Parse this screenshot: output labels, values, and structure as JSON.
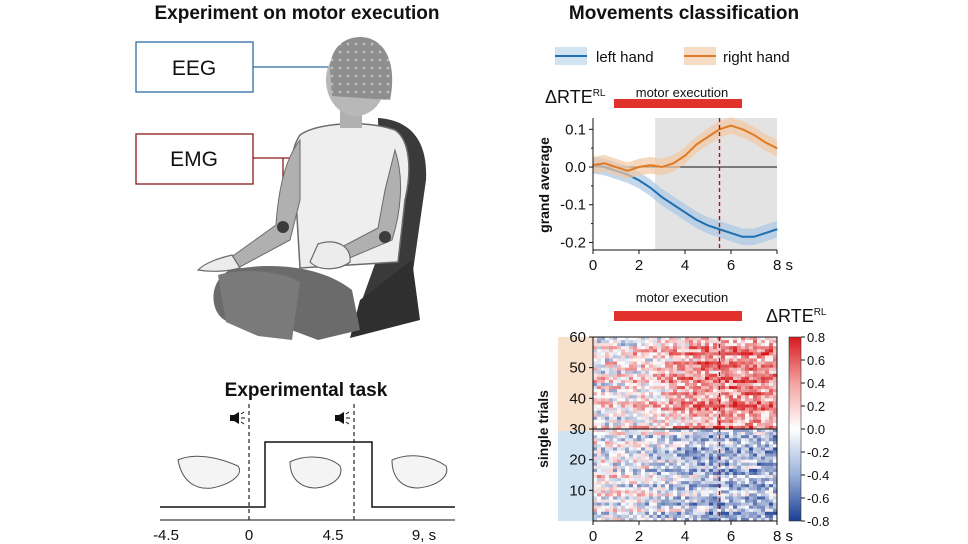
{
  "left": {
    "title": "Experiment on motor execution",
    "eeg_label": "EEG",
    "emg_label": "EMG",
    "task_title": "Experimental task",
    "task_ticks": [
      "-4.5",
      "0",
      "4.5",
      "9, s"
    ],
    "colors": {
      "eeg": "#2e6da4",
      "emg": "#8b1a1a"
    }
  },
  "right": {
    "title": "Movements classification",
    "legend": [
      {
        "label": "left hand",
        "color": "#1f6fb0"
      },
      {
        "label": "right hand",
        "color": "#e07b24"
      }
    ],
    "motor_execution_label": "motor execution",
    "metric_base": "ΔRTE",
    "metric_sup": "RL",
    "top_ylabel": "grand average",
    "bottom_ylabel": "single trials",
    "bar_color": "#e1312a"
  },
  "chart_data": [
    {
      "type": "line",
      "x": [
        0,
        0.5,
        1,
        1.5,
        2,
        2.5,
        3,
        3.5,
        4,
        4.5,
        5,
        5.5,
        6,
        6.5,
        7,
        7.5,
        8
      ],
      "series": [
        {
          "name": "left hand",
          "values": [
            0.005,
            0.0,
            -0.01,
            -0.02,
            -0.035,
            -0.055,
            -0.08,
            -0.1,
            -0.12,
            -0.14,
            -0.155,
            -0.165,
            -0.175,
            -0.185,
            -0.185,
            -0.175,
            -0.165
          ]
        },
        {
          "name": "right hand",
          "values": [
            0.005,
            0.01,
            0.0,
            -0.01,
            0.0,
            0.005,
            0.0,
            0.01,
            0.03,
            0.06,
            0.08,
            0.1,
            0.11,
            0.1,
            0.085,
            0.065,
            0.05
          ]
        }
      ],
      "xticks": [
        "0",
        "2",
        "4",
        "6",
        "8 s"
      ],
      "yticks": [
        "0.1",
        "0.0",
        "-0.1",
        "-0.2"
      ],
      "xlim": [
        0,
        8
      ],
      "ylim": [
        -0.22,
        0.13
      ],
      "shaded_window": [
        2.7,
        8
      ],
      "vline_x": 5.5,
      "motor_execution": [
        1,
        6.5
      ]
    },
    {
      "type": "heatmap",
      "xlim": [
        0,
        8
      ],
      "ylim": [
        0,
        60
      ],
      "xticks": [
        "0",
        "2",
        "4",
        "6",
        "8 s"
      ],
      "yticks": [
        "60",
        "50",
        "40",
        "30",
        "20",
        "10"
      ],
      "colorbar_ticks": [
        "0.8",
        "0.6",
        "0.4",
        "0.2",
        "0.0",
        "-0.2",
        "-0.4",
        "-0.6",
        "-0.8"
      ],
      "clim": [
        -0.8,
        0.8
      ],
      "trial_split": 30,
      "vline_x": 5.5,
      "motor_execution": [
        1,
        6.5
      ]
    }
  ]
}
